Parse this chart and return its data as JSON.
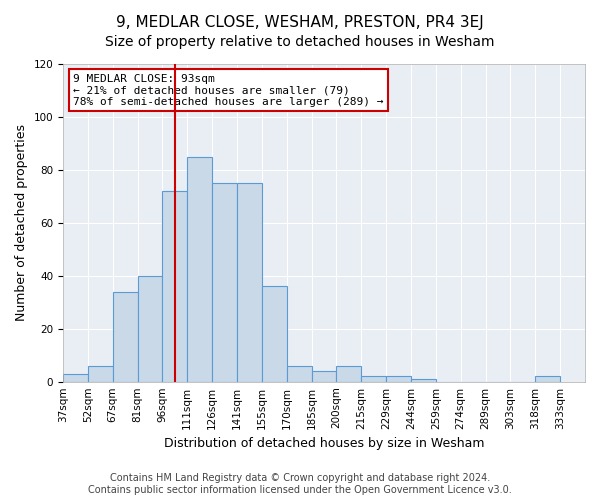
{
  "title": "9, MEDLAR CLOSE, WESHAM, PRESTON, PR4 3EJ",
  "subtitle": "Size of property relative to detached houses in Wesham",
  "xlabel": "Distribution of detached houses by size in Wesham",
  "ylabel": "Number of detached properties",
  "bin_labels": [
    "37sqm",
    "52sqm",
    "67sqm",
    "81sqm",
    "96sqm",
    "111sqm",
    "126sqm",
    "141sqm",
    "155sqm",
    "170sqm",
    "185sqm",
    "200sqm",
    "215sqm",
    "229sqm",
    "244sqm",
    "259sqm",
    "274sqm",
    "289sqm",
    "303sqm",
    "318sqm",
    "333sqm"
  ],
  "bar_values": [
    3,
    6,
    34,
    40,
    72,
    85,
    75,
    75,
    36,
    6,
    4,
    6,
    2,
    2,
    1,
    0,
    0,
    0,
    0,
    2
  ],
  "bar_color": "#c9d9e8",
  "bar_edge_color": "#5b9bd5",
  "vline_x": 4,
  "vline_color": "#cc0000",
  "annotation_text": "9 MEDLAR CLOSE: 93sqm\n← 21% of detached houses are smaller (79)\n78% of semi-detached houses are larger (289) →",
  "annotation_box_color": "#ffffff",
  "annotation_box_edge_color": "#cc0000",
  "ylim": [
    0,
    120
  ],
  "yticks": [
    0,
    20,
    40,
    60,
    80,
    100,
    120
  ],
  "background_color": "#e8eef4",
  "footer_text": "Contains HM Land Registry data © Crown copyright and database right 2024.\nContains public sector information licensed under the Open Government Licence v3.0.",
  "title_fontsize": 11,
  "subtitle_fontsize": 10,
  "axis_label_fontsize": 9,
  "tick_fontsize": 7.5,
  "footer_fontsize": 7
}
